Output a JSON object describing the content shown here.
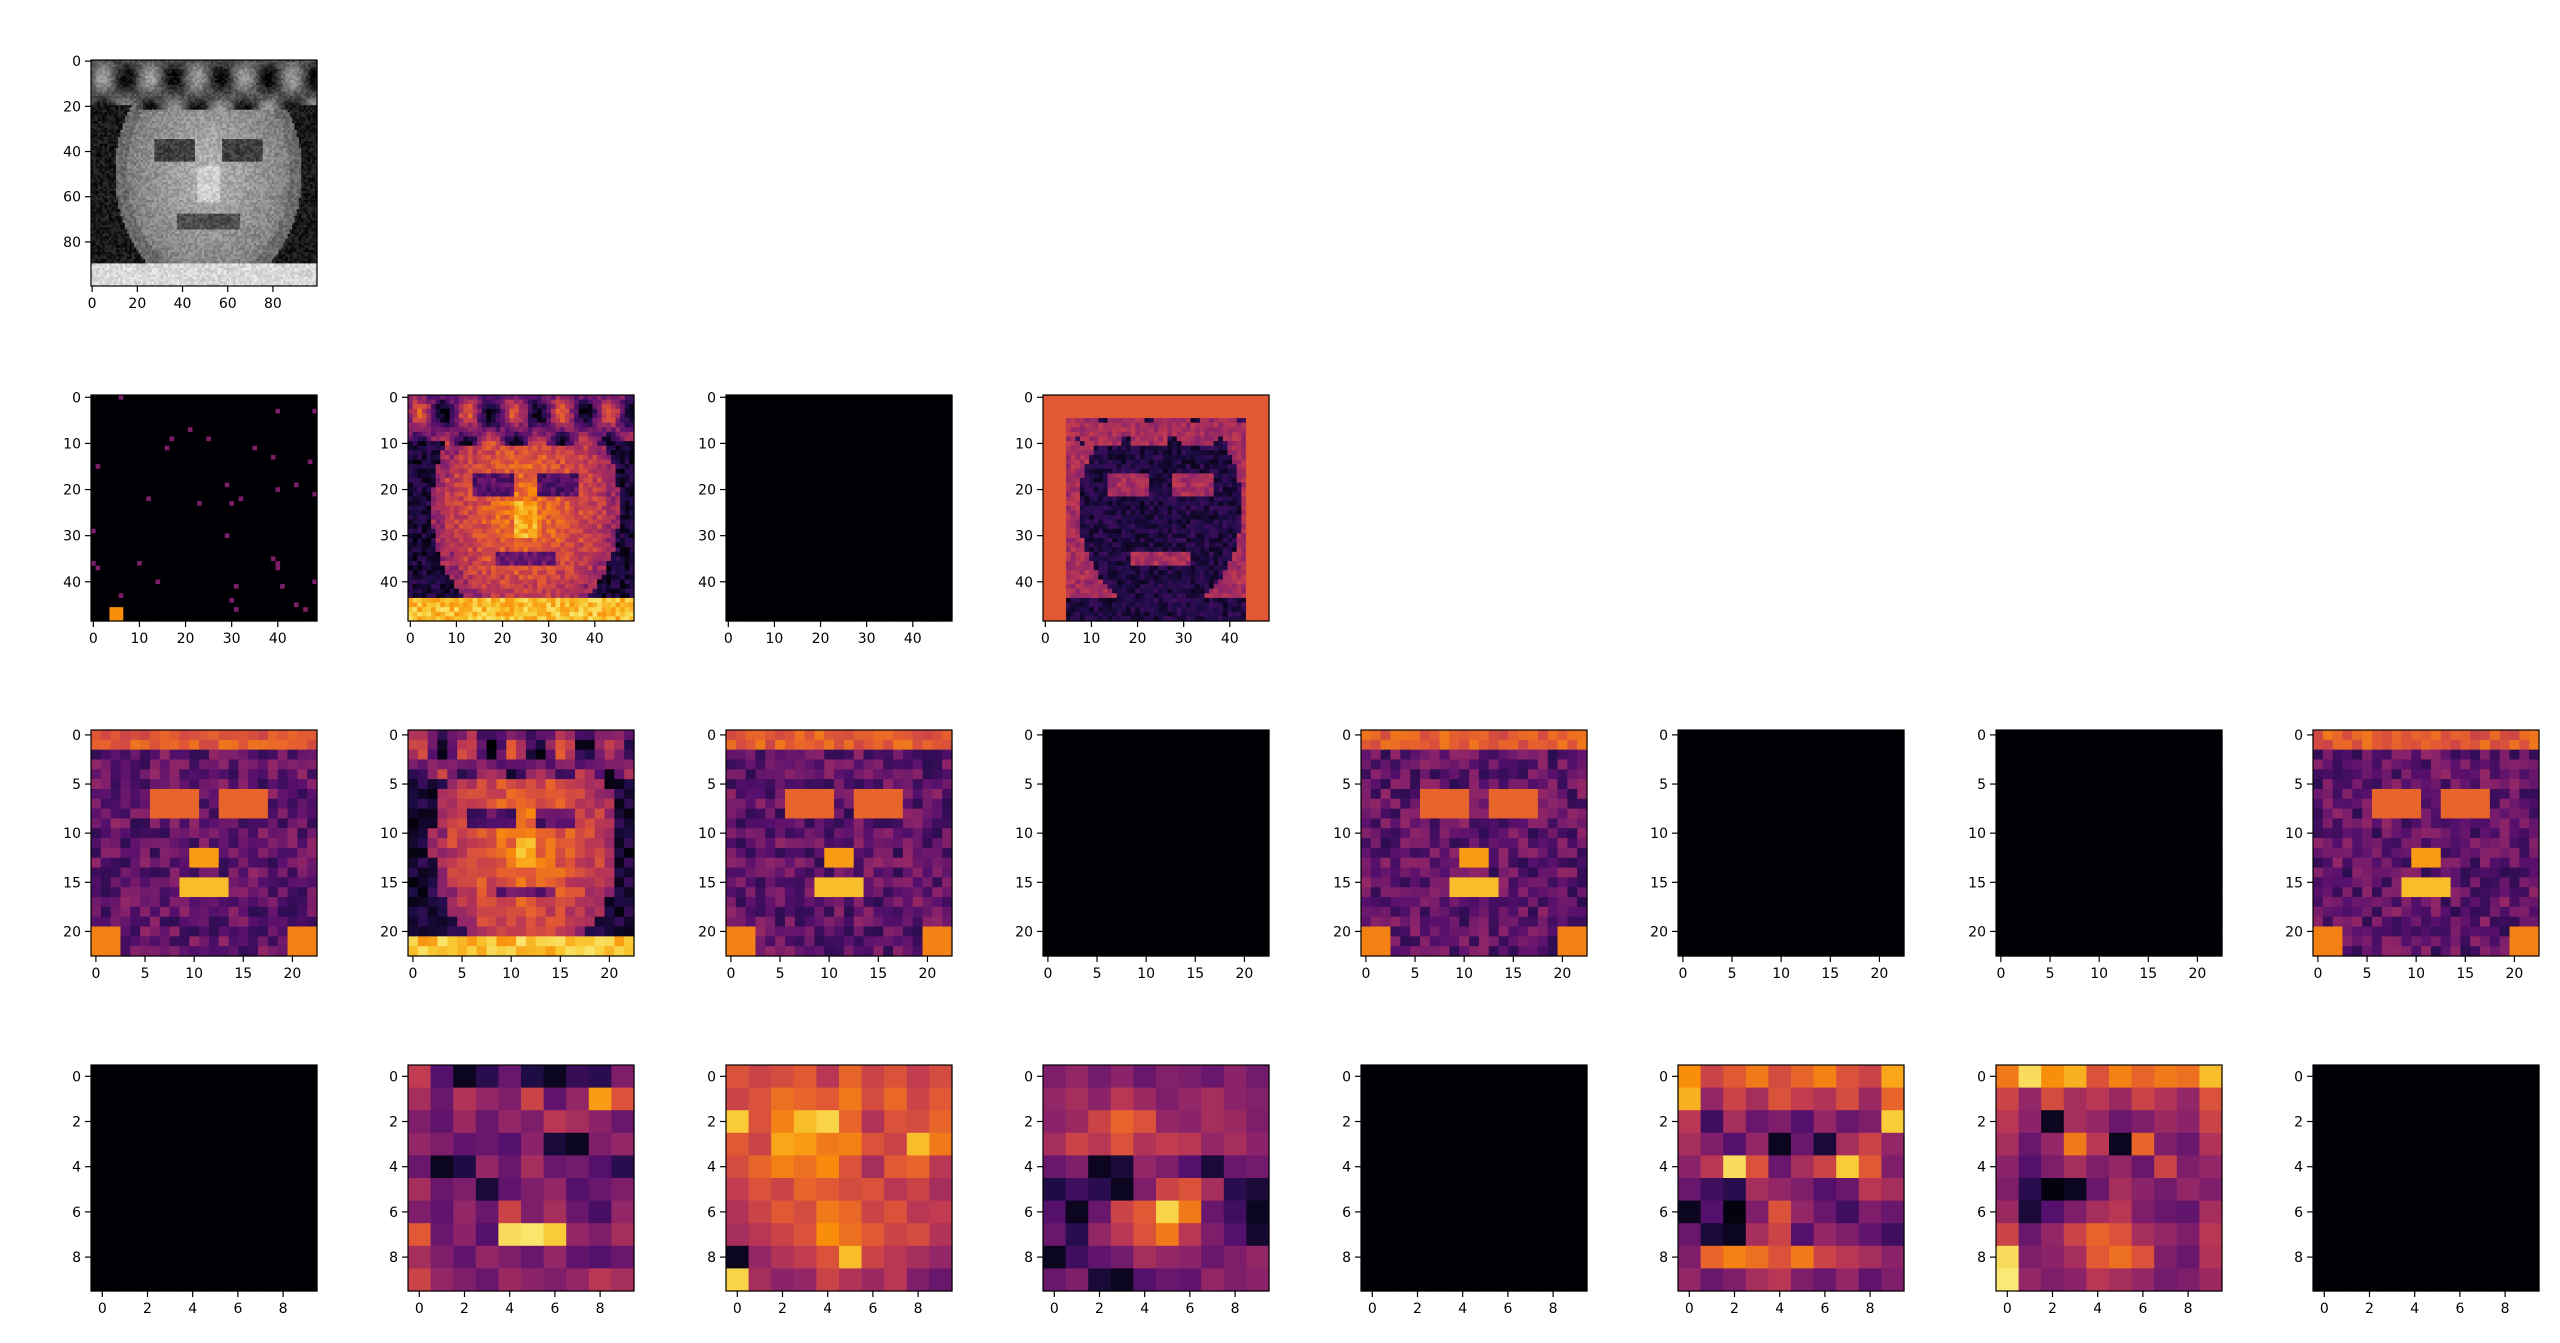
{
  "chart_data": {
    "type": "heatmap",
    "colormaps": {
      "gray": [
        "#000000",
        "#ffffff"
      ],
      "inferno": [
        "#000004",
        "#1f0c48",
        "#550f6d",
        "#88226a",
        "#ba3655",
        "#e35933",
        "#f98e09",
        "#f8c932",
        "#fcffa4"
      ]
    },
    "rows": [
      {
        "panels": [
          {
            "size": 100,
            "ticks": [
              0,
              20,
              40,
              60,
              80
            ],
            "colormap": "gray",
            "content": "face"
          }
        ]
      },
      {
        "panels": [
          {
            "size": 49,
            "ticks": [
              0,
              10,
              20,
              30,
              40
            ],
            "colormap": "inferno",
            "content": "sparse"
          },
          {
            "size": 49,
            "ticks": [
              0,
              10,
              20,
              30,
              40
            ],
            "colormap": "inferno",
            "content": "face"
          },
          {
            "size": 49,
            "ticks": [
              0,
              10,
              20,
              30,
              40
            ],
            "colormap": "inferno",
            "content": "blank"
          },
          {
            "size": 49,
            "ticks": [
              0,
              10,
              20,
              30,
              40
            ],
            "colormap": "inferno",
            "content": "inverse"
          }
        ]
      },
      {
        "panels": [
          {
            "size": 23,
            "ticks": [
              0,
              5,
              10,
              15,
              20
            ],
            "colormap": "inferno",
            "content": "edges"
          },
          {
            "size": 23,
            "ticks": [
              0,
              5,
              10,
              15,
              20
            ],
            "colormap": "inferno",
            "content": "face"
          },
          {
            "size": 23,
            "ticks": [
              0,
              5,
              10,
              15,
              20
            ],
            "colormap": "inferno",
            "content": "edges"
          },
          {
            "size": 23,
            "ticks": [
              0,
              5,
              10,
              15,
              20
            ],
            "colormap": "inferno",
            "content": "blank"
          },
          {
            "size": 23,
            "ticks": [
              0,
              5,
              10,
              15,
              20
            ],
            "colormap": "inferno",
            "content": "edges"
          },
          {
            "size": 23,
            "ticks": [
              0,
              5,
              10,
              15,
              20
            ],
            "colormap": "inferno",
            "content": "blank"
          },
          {
            "size": 23,
            "ticks": [
              0,
              5,
              10,
              15,
              20
            ],
            "colormap": "inferno",
            "content": "blank"
          },
          {
            "size": 23,
            "ticks": [
              0,
              5,
              10,
              15,
              20
            ],
            "colormap": "inferno",
            "content": "edges"
          }
        ]
      },
      {
        "panels": [
          {
            "size": 10,
            "ticks": [
              0,
              2,
              4,
              6,
              8
            ],
            "colormap": "inferno",
            "content": "blank"
          },
          {
            "size": 10,
            "ticks": [
              0,
              2,
              4,
              6,
              8
            ],
            "colormap": "inferno",
            "content": "matrix",
            "values": [
              [
                0.52,
                0.25,
                0.05,
                0.15,
                0.3,
                0.12,
                0.05,
                0.18,
                0.15,
                0.35
              ],
              [
                0.45,
                0.3,
                0.48,
                0.4,
                0.35,
                0.55,
                0.28,
                0.4,
                0.78,
                0.6
              ],
              [
                0.35,
                0.28,
                0.42,
                0.3,
                0.4,
                0.35,
                0.5,
                0.45,
                0.38,
                0.3
              ],
              [
                0.4,
                0.35,
                0.28,
                0.3,
                0.25,
                0.38,
                0.1,
                0.05,
                0.35,
                0.4
              ],
              [
                0.3,
                0.05,
                0.12,
                0.4,
                0.3,
                0.45,
                0.3,
                0.32,
                0.25,
                0.15
              ],
              [
                0.45,
                0.3,
                0.35,
                0.1,
                0.28,
                0.35,
                0.4,
                0.25,
                0.3,
                0.35
              ],
              [
                0.35,
                0.28,
                0.4,
                0.3,
                0.55,
                0.35,
                0.45,
                0.3,
                0.22,
                0.4
              ],
              [
                0.62,
                0.3,
                0.38,
                0.25,
                0.92,
                0.94,
                0.88,
                0.4,
                0.35,
                0.45
              ],
              [
                0.45,
                0.35,
                0.28,
                0.4,
                0.35,
                0.3,
                0.4,
                0.28,
                0.25,
                0.3
              ],
              [
                0.55,
                0.4,
                0.35,
                0.3,
                0.42,
                0.38,
                0.35,
                0.4,
                0.5,
                0.45
              ]
            ]
          },
          {
            "size": 10,
            "ticks": [
              0,
              2,
              4,
              6,
              8
            ],
            "colormap": "inferno",
            "content": "matrix",
            "values": [
              [
                0.6,
                0.55,
                0.58,
                0.62,
                0.5,
                0.65,
                0.55,
                0.6,
                0.52,
                0.58
              ],
              [
                0.55,
                0.6,
                0.68,
                0.65,
                0.62,
                0.7,
                0.58,
                0.66,
                0.55,
                0.62
              ],
              [
                0.88,
                0.6,
                0.72,
                0.85,
                0.9,
                0.65,
                0.48,
                0.6,
                0.58,
                0.65
              ],
              [
                0.62,
                0.55,
                0.8,
                0.78,
                0.7,
                0.72,
                0.6,
                0.55,
                0.85,
                0.7
              ],
              [
                0.58,
                0.65,
                0.72,
                0.68,
                0.74,
                0.6,
                0.45,
                0.62,
                0.65,
                0.5
              ],
              [
                0.52,
                0.6,
                0.55,
                0.65,
                0.62,
                0.58,
                0.6,
                0.5,
                0.55,
                0.45
              ],
              [
                0.48,
                0.55,
                0.62,
                0.58,
                0.7,
                0.66,
                0.55,
                0.6,
                0.5,
                0.52
              ],
              [
                0.45,
                0.5,
                0.55,
                0.6,
                0.75,
                0.68,
                0.62,
                0.55,
                0.58,
                0.48
              ],
              [
                0.05,
                0.4,
                0.48,
                0.52,
                0.6,
                0.85,
                0.55,
                0.5,
                0.45,
                0.4
              ],
              [
                0.9,
                0.45,
                0.38,
                0.4,
                0.55,
                0.48,
                0.42,
                0.5,
                0.35,
                0.3
              ]
            ]
          },
          {
            "size": 10,
            "ticks": [
              0,
              2,
              4,
              6,
              8
            ],
            "colormap": "inferno",
            "content": "matrix",
            "values": [
              [
                0.35,
                0.4,
                0.32,
                0.38,
                0.3,
                0.36,
                0.34,
                0.3,
                0.38,
                0.32
              ],
              [
                0.4,
                0.45,
                0.38,
                0.5,
                0.42,
                0.35,
                0.4,
                0.45,
                0.38,
                0.36
              ],
              [
                0.38,
                0.42,
                0.55,
                0.65,
                0.6,
                0.4,
                0.38,
                0.45,
                0.42,
                0.35
              ],
              [
                0.45,
                0.55,
                0.5,
                0.6,
                0.48,
                0.52,
                0.5,
                0.4,
                0.45,
                0.38
              ],
              [
                0.3,
                0.35,
                0.05,
                0.1,
                0.4,
                0.35,
                0.25,
                0.1,
                0.3,
                0.32
              ],
              [
                0.12,
                0.2,
                0.15,
                0.05,
                0.35,
                0.55,
                0.6,
                0.45,
                0.15,
                0.1
              ],
              [
                0.25,
                0.05,
                0.3,
                0.55,
                0.62,
                0.9,
                0.7,
                0.3,
                0.2,
                0.05
              ],
              [
                0.3,
                0.15,
                0.4,
                0.5,
                0.6,
                0.7,
                0.5,
                0.35,
                0.25,
                0.08
              ],
              [
                0.05,
                0.2,
                0.28,
                0.32,
                0.45,
                0.4,
                0.38,
                0.3,
                0.35,
                0.4
              ],
              [
                0.3,
                0.35,
                0.1,
                0.05,
                0.25,
                0.3,
                0.28,
                0.4,
                0.35,
                0.38
              ]
            ]
          },
          {
            "size": 10,
            "ticks": [
              0,
              2,
              4,
              6,
              8
            ],
            "colormap": "inferno",
            "content": "blank"
          },
          {
            "size": 10,
            "ticks": [
              0,
              2,
              4,
              6,
              8
            ],
            "colormap": "inferno",
            "content": "matrix",
            "values": [
              [
                0.75,
                0.55,
                0.62,
                0.7,
                0.58,
                0.65,
                0.72,
                0.6,
                0.55,
                0.8
              ],
              [
                0.82,
                0.4,
                0.55,
                0.45,
                0.6,
                0.52,
                0.48,
                0.58,
                0.42,
                0.65
              ],
              [
                0.5,
                0.2,
                0.45,
                0.3,
                0.35,
                0.25,
                0.4,
                0.3,
                0.35,
                0.88
              ],
              [
                0.45,
                0.35,
                0.25,
                0.4,
                0.05,
                0.3,
                0.1,
                0.45,
                0.55,
                0.4
              ],
              [
                0.38,
                0.5,
                0.92,
                0.6,
                0.3,
                0.45,
                0.55,
                0.88,
                0.62,
                0.35
              ],
              [
                0.3,
                0.2,
                0.15,
                0.45,
                0.4,
                0.35,
                0.25,
                0.3,
                0.5,
                0.45
              ],
              [
                0.05,
                0.25,
                0.02,
                0.35,
                0.6,
                0.4,
                0.3,
                0.2,
                0.35,
                0.3
              ],
              [
                0.3,
                0.1,
                0.05,
                0.45,
                0.55,
                0.25,
                0.4,
                0.35,
                0.28,
                0.2
              ],
              [
                0.35,
                0.65,
                0.72,
                0.68,
                0.6,
                0.7,
                0.55,
                0.5,
                0.45,
                0.38
              ],
              [
                0.4,
                0.3,
                0.35,
                0.45,
                0.5,
                0.35,
                0.3,
                0.4,
                0.28,
                0.35
              ]
            ]
          },
          {
            "size": 10,
            "ticks": [
              0,
              2,
              4,
              6,
              8
            ],
            "colormap": "inferno",
            "content": "matrix",
            "values": [
              [
                0.7,
                0.92,
                0.75,
                0.82,
                0.6,
                0.72,
                0.65,
                0.7,
                0.68,
                0.85
              ],
              [
                0.55,
                0.4,
                0.58,
                0.45,
                0.5,
                0.42,
                0.55,
                0.48,
                0.4,
                0.6
              ],
              [
                0.5,
                0.38,
                0.05,
                0.45,
                0.4,
                0.3,
                0.35,
                0.42,
                0.38,
                0.55
              ],
              [
                0.45,
                0.3,
                0.4,
                0.7,
                0.5,
                0.05,
                0.65,
                0.35,
                0.3,
                0.48
              ],
              [
                0.38,
                0.25,
                0.35,
                0.45,
                0.35,
                0.4,
                0.3,
                0.55,
                0.35,
                0.4
              ],
              [
                0.35,
                0.15,
                0.02,
                0.05,
                0.3,
                0.45,
                0.38,
                0.32,
                0.4,
                0.35
              ],
              [
                0.42,
                0.1,
                0.25,
                0.35,
                0.45,
                0.5,
                0.35,
                0.3,
                0.28,
                0.45
              ],
              [
                0.55,
                0.3,
                0.4,
                0.55,
                0.65,
                0.6,
                0.45,
                0.4,
                0.35,
                0.5
              ],
              [
                0.92,
                0.35,
                0.38,
                0.45,
                0.62,
                0.68,
                0.6,
                0.35,
                0.3,
                0.48
              ],
              [
                0.95,
                0.4,
                0.35,
                0.38,
                0.5,
                0.45,
                0.4,
                0.32,
                0.35,
                0.42
              ]
            ]
          },
          {
            "size": 10,
            "ticks": [
              0,
              2,
              4,
              6,
              8
            ],
            "colormap": "inferno",
            "content": "blank"
          }
        ]
      }
    ]
  }
}
